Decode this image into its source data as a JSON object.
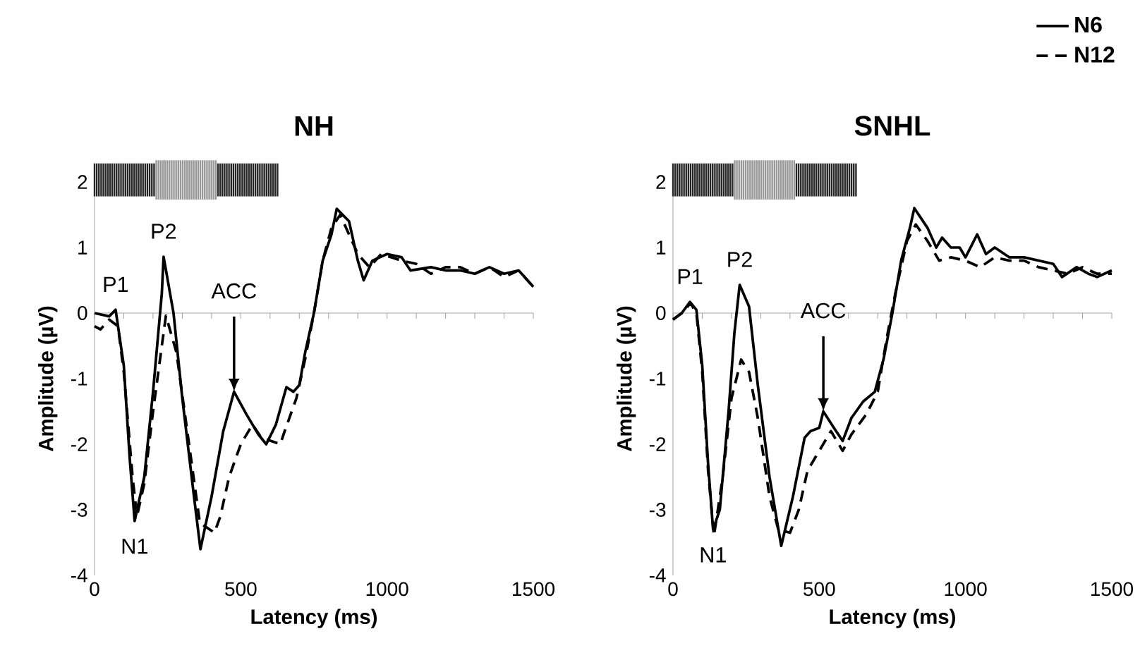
{
  "chart_data": [
    {
      "type": "line",
      "title": "NH",
      "xlabel": "Latency (ms)",
      "ylabel": "Amplitude (µV)",
      "xlim": [
        0,
        1500
      ],
      "ylim": [
        -4,
        2
      ],
      "xticks": [
        0,
        {
          "value": 100,
          "label": null
        },
        {
          "value": 200,
          "label": null
        },
        {
          "value": 300,
          "label": null
        },
        {
          "value": 400,
          "label": null
        },
        500,
        {
          "value": 600,
          "label": null
        },
        {
          "value": 700,
          "label": null
        },
        {
          "value": 800,
          "label": null
        },
        {
          "value": 900,
          "label": null
        },
        1000,
        {
          "value": 1100,
          "label": null
        },
        {
          "value": 1200,
          "label": null
        },
        {
          "value": 1300,
          "label": null
        },
        {
          "value": 1400,
          "label": null
        },
        1500
      ],
      "yticks": [
        -4,
        -3,
        -2,
        -1,
        0,
        1,
        2
      ],
      "marker": "none",
      "annotations": [
        {
          "text": "P1",
          "x": 72,
          "y": 0.05
        },
        {
          "text": "P2",
          "x": 236,
          "y": 0.86
        },
        {
          "text": "N1",
          "x": 137,
          "y": -3.17
        },
        {
          "text": "ACC",
          "x": 477,
          "y": -1.2
        }
      ],
      "series": [
        {
          "color": "#000000",
          "line_style": "solid",
          "x": [
            0,
            50,
            72,
            100,
            120,
            137,
            170,
            200,
            230,
            236,
            270,
            300,
            340,
            362,
            400,
            440,
            477,
            520,
            560,
            587,
            620,
            656,
            680,
            700,
            720,
            750,
            780,
            810,
            828,
            870,
            900,
            920,
            950,
            1000,
            1050,
            1080,
            1150,
            1200,
            1250,
            1300,
            1350,
            1400,
            1450,
            1500
          ],
          "values": [
            0,
            -0.05,
            0.05,
            -0.8,
            -2.2,
            -3.17,
            -2.5,
            -1.2,
            0.3,
            0.86,
            0,
            -1.3,
            -2.8,
            -3.6,
            -2.8,
            -1.8,
            -1.2,
            -1.55,
            -1.85,
            -2.0,
            -1.7,
            -1.13,
            -1.2,
            -1.1,
            -0.6,
            0,
            0.8,
            1.2,
            1.59,
            1.4,
            0.8,
            0.5,
            0.8,
            0.9,
            0.85,
            0.65,
            0.7,
            0.65,
            0.65,
            0.6,
            0.7,
            0.6,
            0.65,
            0.4
          ]
        },
        {
          "color": "#000000",
          "line_style": "dashed",
          "x": [
            0,
            20,
            50,
            80,
            100,
            130,
            145,
            170,
            200,
            230,
            244,
            280,
            320,
            360,
            410,
            430,
            460,
            500,
            540,
            570,
            635,
            650,
            690,
            720,
            750,
            780,
            810,
            840,
            870,
            900,
            940,
            980,
            1050,
            1100,
            1150,
            1200,
            1250,
            1300,
            1350,
            1400,
            1450,
            1500
          ],
          "values": [
            -0.2,
            -0.25,
            -0.1,
            -0.2,
            -0.9,
            -2.5,
            -3.1,
            -2.6,
            -1.5,
            -0.5,
            -0.04,
            -0.6,
            -1.9,
            -3.2,
            -3.35,
            -3.1,
            -2.5,
            -2.0,
            -1.7,
            -1.9,
            -2.0,
            -1.8,
            -1.3,
            -0.7,
            0,
            0.8,
            1.3,
            1.5,
            1.2,
            0.9,
            0.7,
            0.9,
            0.8,
            0.75,
            0.6,
            0.7,
            0.7,
            0.6,
            0.7,
            0.55,
            0.65,
            0.4
          ]
        }
      ]
    },
    {
      "type": "line",
      "title": "SNHL",
      "xlabel": "Latency (ms)",
      "ylabel": "Amplitude (µV)",
      "xlim": [
        0,
        1500
      ],
      "ylim": [
        -4,
        2
      ],
      "xticks": [
        0,
        {
          "value": 100,
          "label": null
        },
        {
          "value": 200,
          "label": null
        },
        {
          "value": 300,
          "label": null
        },
        {
          "value": 400,
          "label": null
        },
        500,
        {
          "value": 600,
          "label": null
        },
        {
          "value": 700,
          "label": null
        },
        {
          "value": 800,
          "label": null
        },
        {
          "value": 900,
          "label": null
        },
        1000,
        {
          "value": 1100,
          "label": null
        },
        {
          "value": 1200,
          "label": null
        },
        {
          "value": 1300,
          "label": null
        },
        {
          "value": 1400,
          "label": null
        },
        1500
      ],
      "yticks": [
        -4,
        -3,
        -2,
        -1,
        0,
        1,
        2
      ],
      "marker": "none",
      "legend": "top right",
      "annotations": [
        {
          "text": "P1",
          "x": 58,
          "y": 0.17
        },
        {
          "text": "P2",
          "x": 228,
          "y": 0.43
        },
        {
          "text": "N1",
          "x": 137,
          "y": -3.3
        },
        {
          "text": "ACC",
          "x": 514,
          "y": -1.5
        }
      ],
      "series": [
        {
          "name": "N6",
          "color": "#000000",
          "line_style": "solid",
          "x": [
            0,
            30,
            58,
            80,
            100,
            120,
            137,
            160,
            190,
            210,
            228,
            260,
            290,
            330,
            370,
            410,
            450,
            470,
            500,
            514,
            550,
            580,
            610,
            650,
            690,
            720,
            750,
            780,
            810,
            825,
            870,
            900,
            920,
            950,
            980,
            1000,
            1040,
            1070,
            1100,
            1150,
            1200,
            1250,
            1300,
            1330,
            1380,
            1420,
            1450,
            1500
          ],
          "values": [
            -0.1,
            0,
            0.17,
            0.05,
            -0.8,
            -2.3,
            -3.3,
            -3.0,
            -1.5,
            -0.3,
            0.43,
            0.1,
            -1.1,
            -2.5,
            -3.55,
            -2.8,
            -1.9,
            -1.8,
            -1.75,
            -1.5,
            -1.75,
            -1.95,
            -1.6,
            -1.35,
            -1.2,
            -0.7,
            0,
            0.8,
            1.3,
            1.6,
            1.3,
            1.0,
            1.15,
            1.0,
            1.0,
            0.85,
            1.2,
            0.9,
            1.0,
            0.85,
            0.85,
            0.8,
            0.75,
            0.55,
            0.7,
            0.6,
            0.55,
            0.65
          ]
        },
        {
          "name": "N12",
          "color": "#000000",
          "line_style": "dashed",
          "x": [
            0,
            30,
            60,
            80,
            100,
            120,
            140,
            170,
            200,
            233,
            260,
            290,
            330,
            360,
            400,
            430,
            460,
            500,
            540,
            580,
            610,
            660,
            700,
            730,
            760,
            800,
            830,
            870,
            910,
            950,
            1000,
            1050,
            1100,
            1150,
            1200,
            1250,
            1300,
            1350,
            1400,
            1450,
            1500
          ],
          "values": [
            -0.1,
            0,
            0.15,
            0.0,
            -0.9,
            -2.4,
            -3.4,
            -2.5,
            -1.3,
            -0.71,
            -0.9,
            -1.6,
            -2.8,
            -3.3,
            -3.35,
            -3.0,
            -2.4,
            -2.1,
            -1.8,
            -2.1,
            -1.85,
            -1.55,
            -1.2,
            -0.4,
            0.3,
            1.1,
            1.35,
            1.1,
            0.8,
            0.85,
            0.8,
            0.7,
            0.85,
            0.8,
            0.8,
            0.7,
            0.65,
            0.6,
            0.7,
            0.6,
            0.6
          ]
        }
      ]
    }
  ]
}
